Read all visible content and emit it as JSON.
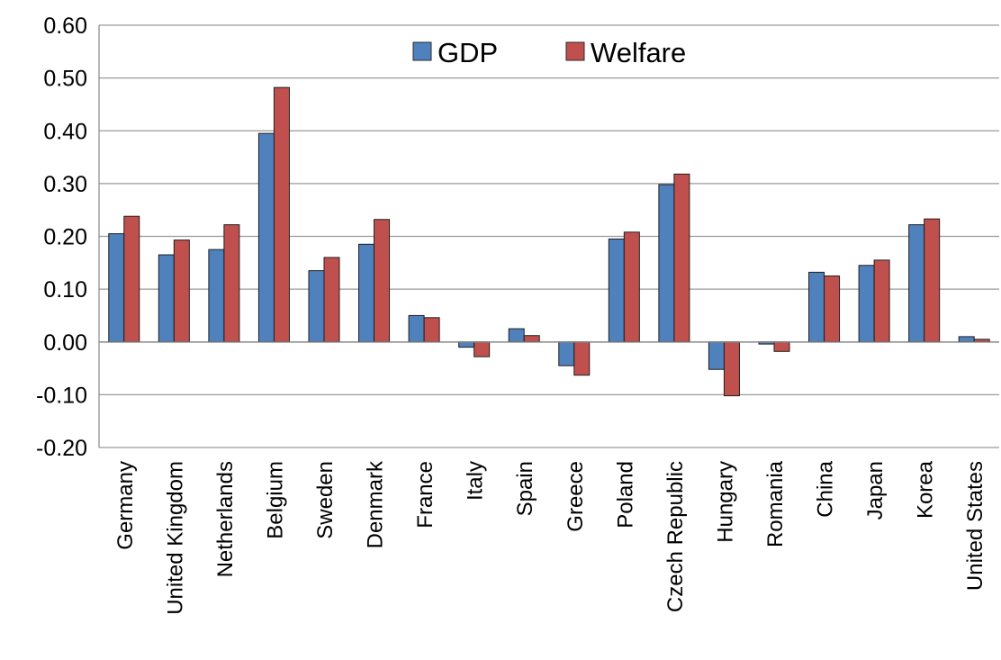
{
  "chart_data": {
    "type": "bar",
    "categories": [
      "Germany",
      "United Kingdom",
      "Netherlands",
      "Belgium",
      "Sweden",
      "Denmark",
      "France",
      "Italy",
      "Spain",
      "Greece",
      "Poland",
      "Czech Republic",
      "Hungary",
      "Romania",
      "China",
      "Japan",
      "Korea",
      "United States"
    ],
    "series": [
      {
        "name": "GDP",
        "color": "#4F81BD",
        "values": [
          0.205,
          0.165,
          0.175,
          0.395,
          0.135,
          0.185,
          0.05,
          -0.01,
          0.025,
          -0.045,
          0.195,
          0.298,
          -0.052,
          -0.004,
          0.132,
          0.145,
          0.222,
          0.01
        ]
      },
      {
        "name": "Welfare",
        "color": "#C0504D",
        "values": [
          0.238,
          0.193,
          0.222,
          0.482,
          0.16,
          0.232,
          0.046,
          -0.028,
          0.012,
          -0.063,
          0.208,
          0.318,
          -0.102,
          -0.018,
          0.125,
          0.155,
          0.233,
          0.005
        ]
      }
    ],
    "yticks": [
      "0.60",
      "0.50",
      "0.40",
      "0.30",
      "0.20",
      "0.10",
      "0.00",
      "-0.10",
      "-0.20"
    ],
    "ylim": [
      -0.2,
      0.6
    ],
    "grid": "horizontal",
    "legend": "top-center",
    "title": "",
    "xlabel": "",
    "ylabel": ""
  }
}
